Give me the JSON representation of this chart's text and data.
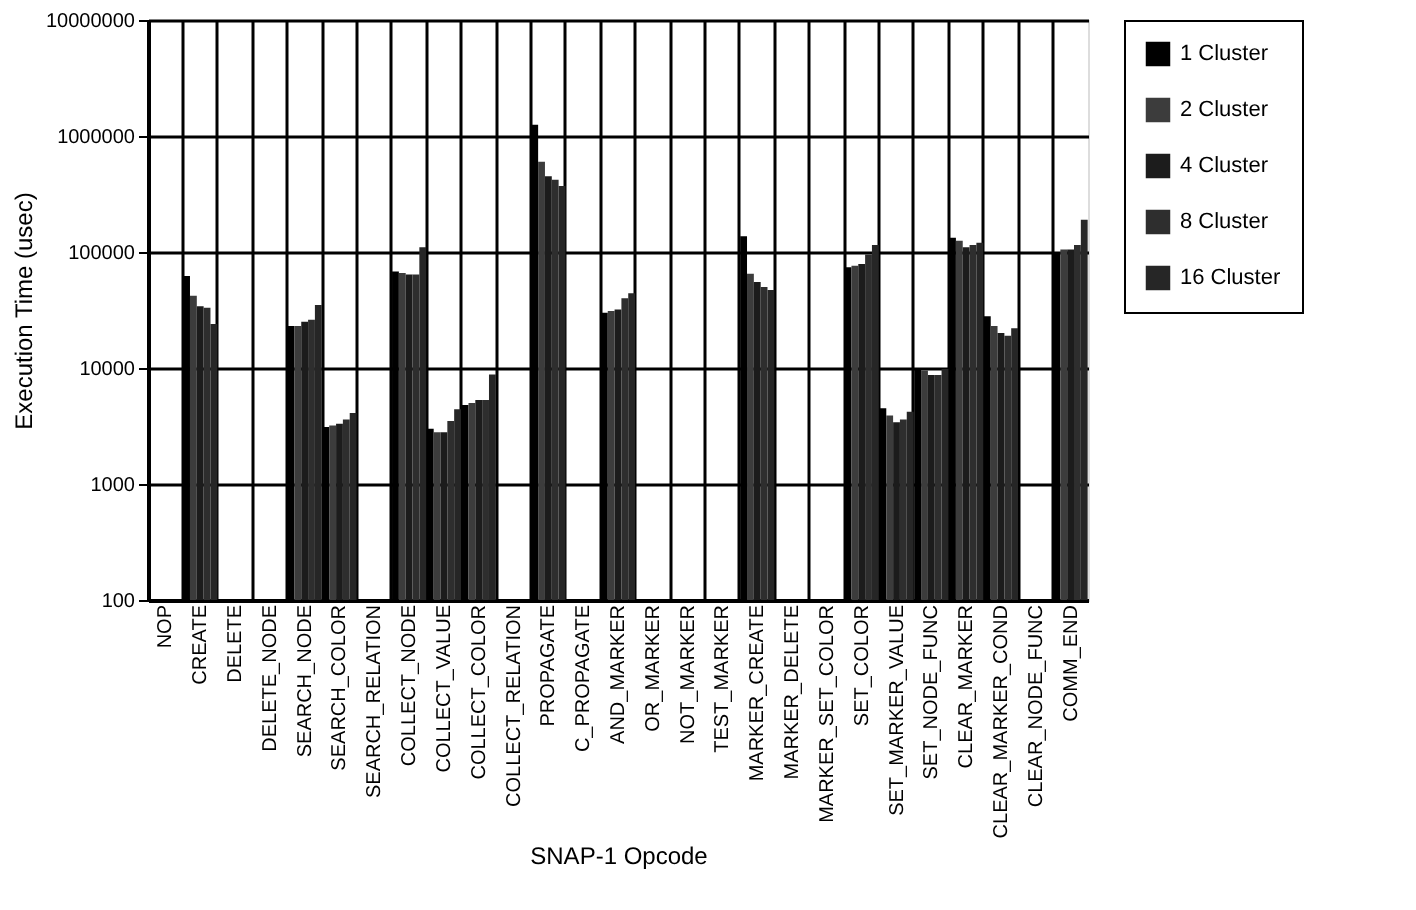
{
  "chart_data": {
    "type": "bar",
    "xlabel": "SNAP-1 Opcode",
    "ylabel": "Execution Time (usec)",
    "categories": [
      "NOP",
      "CREATE",
      "DELETE",
      "DELETE_NODE",
      "SEARCH_NODE",
      "SEARCH_COLOR",
      "SEARCH_RELATION",
      "COLLECT_NODE",
      "COLLECT_VALUE",
      "COLLECT_COLOR",
      "COLLECT_RELATION",
      "PROPAGATE",
      "C_PROPAGATE",
      "AND_MARKER",
      "OR_MARKER",
      "NOT_MARKER",
      "TEST_MARKER",
      "MARKER_CREATE",
      "MARKER_DELETE",
      "MARKER_SET_COLOR",
      "SET_COLOR",
      "SET_MARKER_VALUE",
      "SET_NODE_FUNC",
      "CLEAR_MARKER",
      "CLEAR_MARKER_COND",
      "CLEAR_NODE_FUNC",
      "COMM_END"
    ],
    "series": [
      {
        "name": "1 Cluster",
        "color": "#000000",
        "values": [
          null,
          62000,
          null,
          null,
          23000,
          3100,
          null,
          68000,
          3000,
          4800,
          null,
          1250000,
          null,
          30000,
          null,
          null,
          null,
          137000,
          null,
          null,
          74000,
          4500,
          10000,
          133000,
          28000,
          null,
          100000
        ]
      },
      {
        "name": "2 Cluster",
        "color": "#3c3c3c",
        "values": [
          null,
          42000,
          null,
          null,
          23000,
          3200,
          null,
          66000,
          2800,
          5000,
          null,
          600000,
          null,
          31000,
          null,
          null,
          null,
          65000,
          null,
          null,
          76000,
          3900,
          9500,
          125000,
          23000,
          null,
          105000
        ]
      },
      {
        "name": "4 Cluster",
        "color": "#1c1c1c",
        "values": [
          null,
          34000,
          null,
          null,
          25000,
          3300,
          null,
          64000,
          2800,
          5300,
          null,
          450000,
          null,
          32000,
          null,
          null,
          null,
          55000,
          null,
          null,
          79000,
          3400,
          8700,
          110000,
          20000,
          null,
          105000
        ]
      },
      {
        "name": "8 Cluster",
        "color": "#2e2e2e",
        "values": [
          null,
          33000,
          null,
          null,
          26000,
          3600,
          null,
          64000,
          3500,
          5300,
          null,
          420000,
          null,
          40000,
          null,
          null,
          null,
          50000,
          null,
          null,
          95000,
          3600,
          8700,
          115000,
          19000,
          null,
          115000
        ]
      },
      {
        "name": "16 Cluster",
        "color": "#262626",
        "values": [
          null,
          24000,
          null,
          null,
          35000,
          4100,
          null,
          110000,
          4400,
          8800,
          null,
          370000,
          null,
          44000,
          null,
          null,
          null,
          47000,
          null,
          null,
          115000,
          4200,
          9800,
          120000,
          22000,
          null,
          190000
        ]
      }
    ],
    "ylim": [
      100,
      10000000
    ],
    "yticks": [
      100,
      1000,
      10000,
      100000,
      1000000,
      10000000
    ],
    "log": "y",
    "grid": true,
    "legend": "right"
  }
}
